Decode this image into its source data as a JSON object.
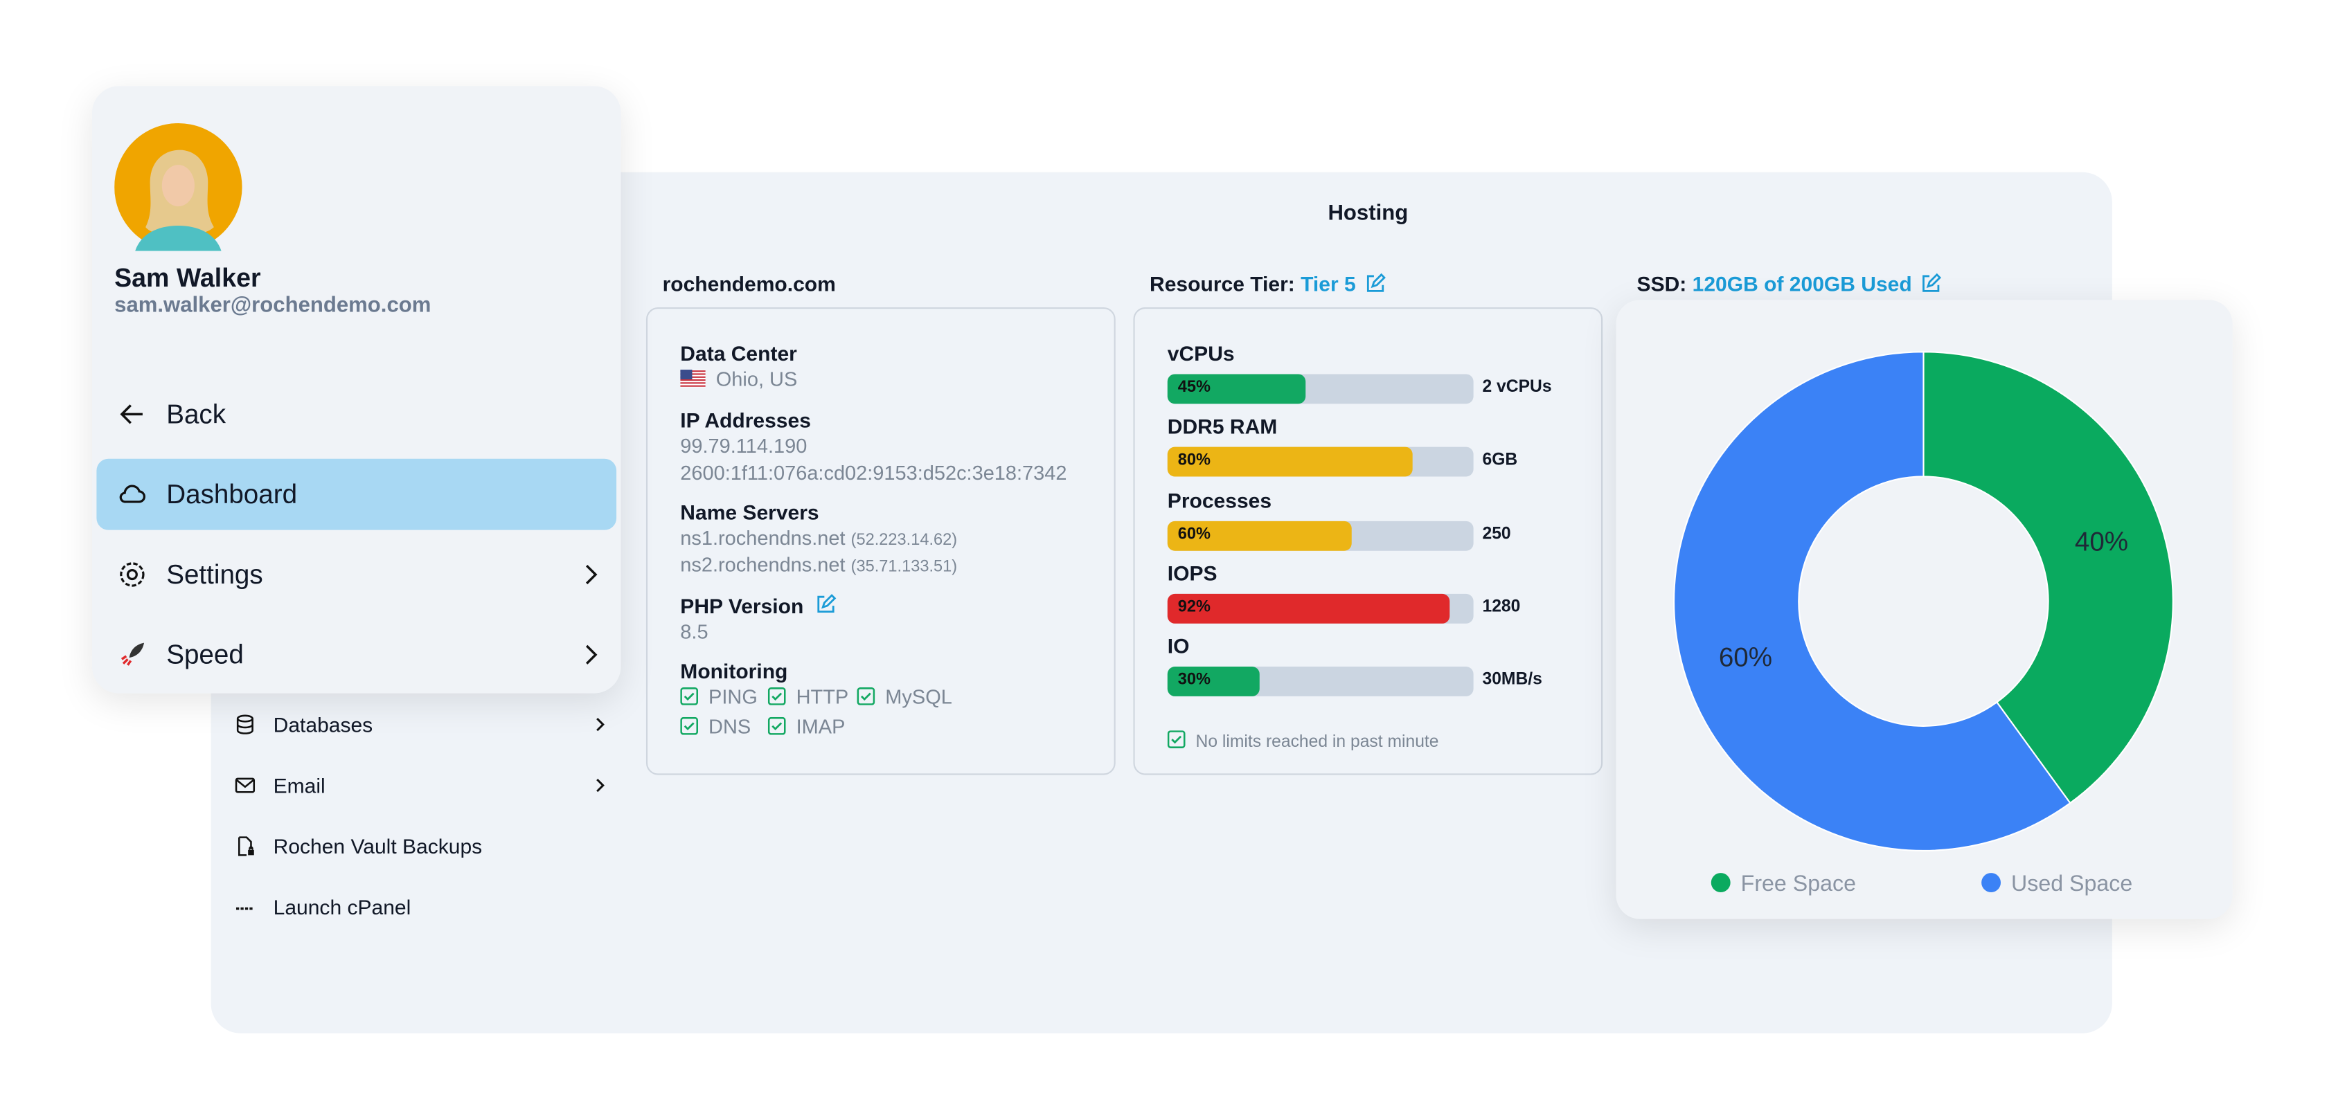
{
  "sidebar": {
    "user": {
      "name": "Sam Walker",
      "email": "sam.walker@rochendemo.com"
    },
    "menu": [
      "Back",
      "Dashboard",
      "Settings",
      "Speed"
    ],
    "items": [
      "Databases",
      "Email",
      "Rochen Vault Backups",
      "Launch cPanel"
    ]
  },
  "panel": {
    "title": "Hosting"
  },
  "domain_card": {
    "title": "rochendemo.com",
    "data_center": {
      "label": "Data Center",
      "value": "Ohio, US"
    },
    "ip_addresses": {
      "label": "IP Addresses",
      "values": [
        "99.79.114.190",
        "2600:1f11:076a:cd02:9153:d52c:3e18:7342"
      ]
    },
    "name_servers": {
      "label": "Name Servers",
      "values": [
        {
          "host": "ns1.rochendns.net",
          "ip": "(52.223.14.62)"
        },
        {
          "host": "ns2.rochendns.net",
          "ip": "(35.71.133.51)"
        }
      ]
    },
    "php_version": {
      "label": "PHP Version",
      "value": "8.5"
    },
    "monitoring": {
      "label": "Monitoring",
      "checks": [
        "PING",
        "HTTP",
        "MySQL",
        "DNS",
        "IMAP"
      ]
    }
  },
  "resource_card": {
    "title": "Resource Tier:",
    "tier": "Tier 5",
    "resources": [
      {
        "name": "vCPUs",
        "value": 45,
        "value_label": "45%",
        "amount": "2 vCPUs",
        "color": "#12a862"
      },
      {
        "name": "DDR5 RAM",
        "value": 80,
        "value_label": "80%",
        "amount": "6GB",
        "color": "#ecb515"
      },
      {
        "name": "Processes",
        "value": 60,
        "value_label": "60%",
        "amount": "250",
        "color": "#ecb515"
      },
      {
        "name": "IOPS",
        "value": 92,
        "value_label": "92%",
        "amount": "1280",
        "color": "#e0292b"
      },
      {
        "name": "IO",
        "value": 30,
        "value_label": "30%",
        "amount": "30MB/s",
        "color": "#12a862"
      }
    ],
    "note": "No limits reached in past minute"
  },
  "ssd_card": {
    "title": "SSD:",
    "usage": "120GB of 200GB Used",
    "chart_data": {
      "type": "donut",
      "series": [
        {
          "name": "Free Space",
          "value": 40,
          "value_label": "40%",
          "color": "#0aaa5f"
        },
        {
          "name": "Used Space",
          "value": 60,
          "value_label": "60%",
          "color": "#3b82f6"
        }
      ]
    }
  }
}
